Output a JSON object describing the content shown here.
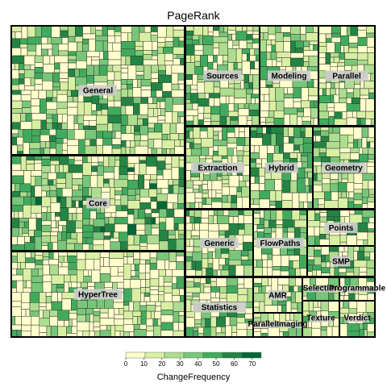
{
  "chart_data": {
    "type": "treemap",
    "title": "PageRank",
    "color_scale": {
      "label": "ChangeFrequency",
      "ticks": [
        0,
        10,
        20,
        30,
        40,
        50,
        60,
        70
      ],
      "domain": [
        0,
        75
      ],
      "colors": [
        "#ffffcc",
        "#d9f0a3",
        "#addd8e",
        "#78c679",
        "#41ab5d",
        "#238443",
        "#006837"
      ]
    },
    "groups": [
      {
        "name": "General",
        "area_fraction": 0.1755,
        "freq_level": 0.35
      },
      {
        "name": "Core",
        "area_fraction": 0.1148,
        "freq_level": 0.45
      },
      {
        "name": "HyperTree",
        "area_fraction": 0.1075,
        "freq_level": 0.25
      },
      {
        "name": "Sources",
        "area_fraction": 0.0628,
        "freq_level": 0.4
      },
      {
        "name": "Modeling",
        "area_fraction": 0.0517,
        "freq_level": 0.3
      },
      {
        "name": "Parallel",
        "area_fraction": 0.0466,
        "freq_level": 0.35
      },
      {
        "name": "Extraction",
        "area_fraction": 0.0521,
        "freq_level": 0.3
      },
      {
        "name": "Hybrid",
        "area_fraction": 0.0491,
        "freq_level": 0.45
      },
      {
        "name": "Geometry",
        "area_fraction": 0.0494,
        "freq_level": 0.4
      },
      {
        "name": "Generic",
        "area_fraction": 0.0526,
        "freq_level": 0.4
      },
      {
        "name": "FlowPaths",
        "area_fraction": 0.0341,
        "freq_level": 0.4
      },
      {
        "name": "Points",
        "area_fraction": 0.0283,
        "freq_level": 0.35
      },
      {
        "name": "SMP",
        "area_fraction": 0.0217,
        "freq_level": 0.4
      },
      {
        "name": "Statistics",
        "area_fraction": 0.0478,
        "freq_level": 0.35
      },
      {
        "name": "AMR",
        "area_fraction": 0.0232,
        "freq_level": 0.3
      },
      {
        "name": "ParallelImaging",
        "area_fraction": 0.0155,
        "freq_level": 0.4
      },
      {
        "name": "Selection",
        "area_fraction": 0.0091,
        "freq_level": 0.35
      },
      {
        "name": "Programmable",
        "area_fraction": 0.0069,
        "freq_level": 0.3
      },
      {
        "name": "Texture",
        "area_fraction": 0.0104,
        "freq_level": 0.35
      },
      {
        "name": "Verdict",
        "area_fraction": 0.0063,
        "freq_level": 0.3
      }
    ]
  }
}
